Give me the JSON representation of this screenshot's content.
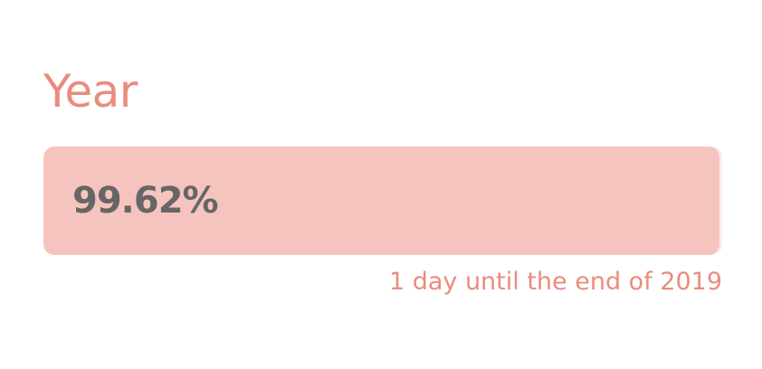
{
  "widget": {
    "title": "Year",
    "progress_label": "99.62%",
    "progress_fraction": 0.9962,
    "caption": "1 day until the end of 2019"
  },
  "colors": {
    "accent": "#e98c7e",
    "bar_fill": "#f6c4bf",
    "value_text": "#666666",
    "background": "#ffffff"
  }
}
